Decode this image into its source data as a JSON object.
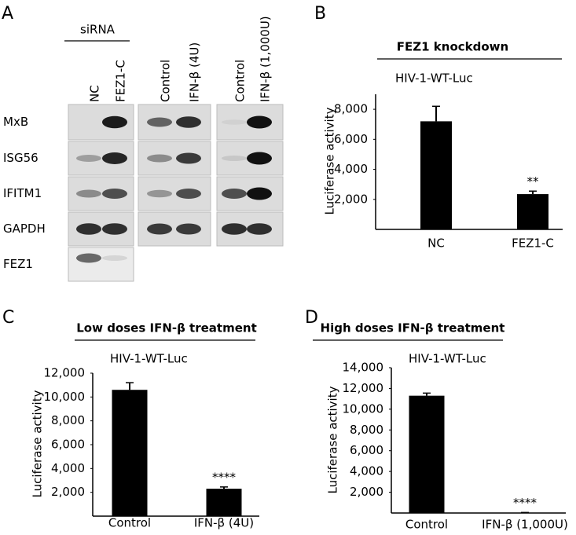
{
  "blot": {
    "panel_label": "A",
    "group_label": "siRNA",
    "lanes": [
      "NC",
      "FEZ1-C",
      "Control",
      "IFN-β (4U)",
      "Control",
      "IFN-β (1,000U)"
    ],
    "proteins": [
      "MxB",
      "ISG56",
      "IFITM1",
      "GAPDH",
      "FEZ1"
    ]
  },
  "chart_data": [
    {
      "type": "bar",
      "panel_label": "B",
      "title": "FEZ1 knockdown",
      "subtitle": "HIV-1-WT-Luc",
      "y_label": "Luciferase activity",
      "categories": [
        "NC",
        "FEZ1-C"
      ],
      "values": [
        7200,
        2350
      ],
      "errors": [
        1000,
        200
      ],
      "color": "#000000",
      "annotations": [
        {
          "text": "**",
          "category": "FEZ1-C"
        }
      ],
      "ylim": [
        0,
        9000
      ],
      "yticks": [
        {
          "value": 2000,
          "label": "2,000"
        },
        {
          "value": 4000,
          "label": "4,000"
        },
        {
          "value": 6000,
          "label": "6,000"
        },
        {
          "value": 8000,
          "label": "8,000"
        }
      ]
    },
    {
      "type": "bar",
      "panel_label": "C",
      "title": "Low doses IFN-β treatment",
      "subtitle": "HIV-1-WT-Luc",
      "y_label": "Luciferase activity",
      "categories": [
        "Control",
        "IFN-β (4U)"
      ],
      "values": [
        10600,
        2300
      ],
      "errors": [
        600,
        150
      ],
      "color": "#000000",
      "annotations": [
        {
          "text": "****",
          "category": "IFN-β (4U)"
        }
      ],
      "ylim": [
        0,
        12000
      ],
      "yticks": [
        {
          "value": 2000,
          "label": "2,000"
        },
        {
          "value": 4000,
          "label": "4,000"
        },
        {
          "value": 6000,
          "label": "6,000"
        },
        {
          "value": 8000,
          "label": "8,000"
        },
        {
          "value": 10000,
          "label": "10,000"
        },
        {
          "value": 12000,
          "label": "12,000"
        }
      ]
    },
    {
      "type": "bar",
      "panel_label": "D",
      "title": "High doses IFN-β treatment",
      "subtitle": "HIV-1-WT-Luc",
      "y_label": "Luciferase activity",
      "categories": [
        "Control",
        "IFN-β (1,000U)"
      ],
      "values": [
        11300,
        30
      ],
      "errors": [
        250,
        20
      ],
      "color": "#000000",
      "annotations": [
        {
          "text": "****",
          "category": "IFN-β (1,000U)"
        }
      ],
      "ylim": [
        0,
        14000
      ],
      "yticks": [
        {
          "value": 2000,
          "label": "2,000"
        },
        {
          "value": 4000,
          "label": "4,000"
        },
        {
          "value": 6000,
          "label": "6,000"
        },
        {
          "value": 8000,
          "label": "8,000"
        },
        {
          "value": 10000,
          "label": "10,000"
        },
        {
          "value": 12000,
          "label": "12,000"
        },
        {
          "value": 14000,
          "label": "14,000"
        }
      ]
    }
  ]
}
